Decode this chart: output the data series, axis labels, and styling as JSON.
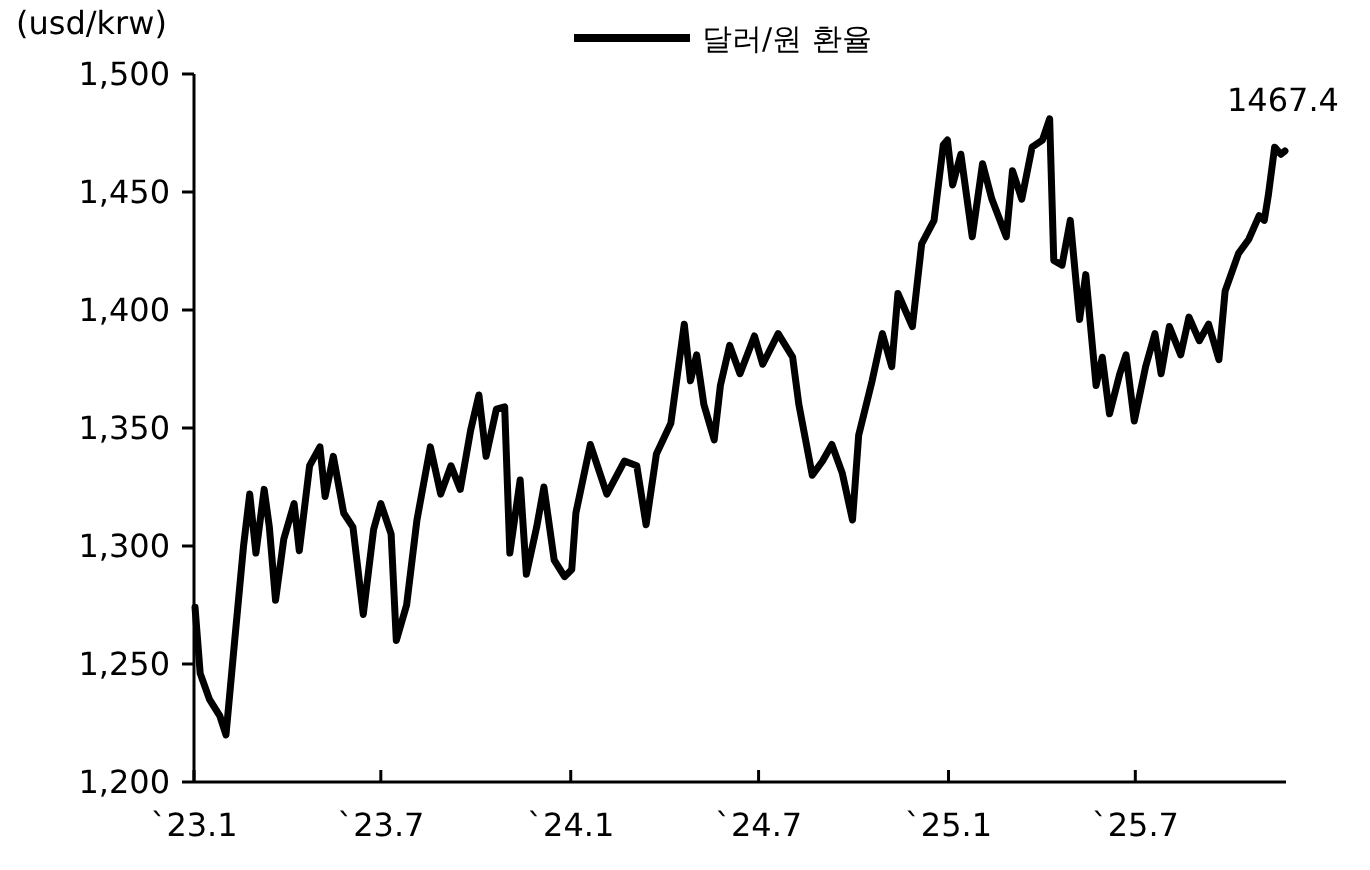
{
  "chart_data": {
    "type": "line",
    "ylabel": "(usd/krw)",
    "legend": "top",
    "grid": false,
    "line_style": "solid",
    "marker": "none",
    "xlim": [
      "2023-01-01",
      "2025-11-24"
    ],
    "ylim": [
      1200,
      1500
    ],
    "xticks": [
      {
        "value": "2023-01-01",
        "label": "`23.1"
      },
      {
        "value": "2023-07-01",
        "label": "`23.7"
      },
      {
        "value": "2024-01-01",
        "label": "`24.1"
      },
      {
        "value": "2024-07-01",
        "label": "`24.7"
      },
      {
        "value": "2025-01-01",
        "label": "`25.1"
      },
      {
        "value": "2025-07-01",
        "label": "`25.7"
      }
    ],
    "yticks": [
      {
        "value": 1200,
        "label": "1,200"
      },
      {
        "value": 1250,
        "label": "1,250"
      },
      {
        "value": 1300,
        "label": "1,300"
      },
      {
        "value": 1350,
        "label": "1,350"
      },
      {
        "value": 1400,
        "label": "1,400"
      },
      {
        "value": 1450,
        "label": "1,450"
      },
      {
        "value": 1500,
        "label": "1,500"
      }
    ],
    "annotations": [
      {
        "text": "1467.4",
        "x": "2025-11-23",
        "y": 1467.4
      }
    ],
    "series": [
      {
        "name": "달러/원 환율",
        "color": "#000000",
        "x": [
          "2023-01-02",
          "2023-01-07",
          "2023-01-16",
          "2023-01-26",
          "2023-02-01",
          "2023-02-09",
          "2023-02-18",
          "2023-02-24",
          "2023-03-02",
          "2023-03-10",
          "2023-03-15",
          "2023-03-21",
          "2023-03-29",
          "2023-04-08",
          "2023-04-13",
          "2023-04-23",
          "2023-05-03",
          "2023-05-08",
          "2023-05-16",
          "2023-05-26",
          "2023-06-04",
          "2023-06-14",
          "2023-06-24",
          "2023-07-01",
          "2023-07-11",
          "2023-07-16",
          "2023-07-26",
          "2023-08-05",
          "2023-08-18",
          "2023-08-28",
          "2023-09-07",
          "2023-09-16",
          "2023-09-26",
          "2023-10-04",
          "2023-10-11",
          "2023-10-21",
          "2023-10-29",
          "2023-11-03",
          "2023-11-13",
          "2023-11-19",
          "2023-11-29",
          "2023-12-06",
          "2023-12-16",
          "2023-12-26",
          "2024-01-02",
          "2024-01-06",
          "2024-01-20",
          "2024-02-05",
          "2024-02-22",
          "2024-03-05",
          "2024-03-14",
          "2024-03-24",
          "2024-04-07",
          "2024-04-20",
          "2024-04-26",
          "2024-05-02",
          "2024-05-09",
          "2024-05-19",
          "2024-05-25",
          "2024-06-03",
          "2024-06-13",
          "2024-06-27",
          "2024-07-05",
          "2024-07-20",
          "2024-08-03",
          "2024-08-09",
          "2024-08-22",
          "2024-09-01",
          "2024-09-10",
          "2024-09-20",
          "2024-09-30",
          "2024-10-06",
          "2024-10-19",
          "2024-10-29",
          "2024-11-07",
          "2024-11-13",
          "2024-11-27",
          "2024-12-06",
          "2024-12-18",
          "2024-12-27",
          "2024-12-31",
          "2025-01-05",
          "2025-01-13",
          "2025-01-24",
          "2025-02-03",
          "2025-02-12",
          "2025-02-26",
          "2025-03-04",
          "2025-03-13",
          "2025-03-23",
          "2025-04-02",
          "2025-04-09",
          "2025-04-13",
          "2025-04-21",
          "2025-04-29",
          "2025-05-08",
          "2025-05-14",
          "2025-05-24",
          "2025-05-30",
          "2025-06-06",
          "2025-06-16",
          "2025-06-22",
          "2025-06-30",
          "2025-07-11",
          "2025-07-20",
          "2025-07-26",
          "2025-08-03",
          "2025-08-14",
          "2025-08-22",
          "2025-09-01",
          "2025-09-10",
          "2025-09-20",
          "2025-09-26",
          "2025-10-09",
          "2025-10-19",
          "2025-10-29",
          "2025-11-03",
          "2025-11-07",
          "2025-11-13",
          "2025-11-19",
          "2025-11-23"
        ],
        "values": [
          1274,
          1246,
          1235,
          1228,
          1220,
          1258,
          1300,
          1322,
          1297,
          1324,
          1308,
          1277,
          1303,
          1318,
          1298,
          1334,
          1342,
          1321,
          1338,
          1314,
          1308,
          1271,
          1307,
          1318,
          1305,
          1260,
          1275,
          1311,
          1342,
          1322,
          1334,
          1324,
          1349,
          1364,
          1338,
          1358,
          1359,
          1297,
          1328,
          1288,
          1308,
          1325,
          1294,
          1287,
          1290,
          1314,
          1343,
          1322,
          1336,
          1334,
          1309,
          1339,
          1352,
          1394,
          1370,
          1381,
          1360,
          1345,
          1368,
          1385,
          1373,
          1389,
          1377,
          1390,
          1380,
          1360,
          1330,
          1336,
          1343,
          1331,
          1311,
          1347,
          1370,
          1390,
          1376,
          1407,
          1393,
          1428,
          1438,
          1470,
          1472,
          1453,
          1466,
          1431,
          1462,
          1447,
          1431,
          1459,
          1447,
          1469,
          1472,
          1481,
          1421,
          1419,
          1438,
          1396,
          1415,
          1368,
          1380,
          1356,
          1373,
          1381,
          1353,
          1376,
          1390,
          1373,
          1393,
          1381,
          1397,
          1387,
          1394,
          1379,
          1408,
          1424,
          1430,
          1440,
          1438,
          1449,
          1469,
          1466,
          1467.4
        ]
      }
    ]
  }
}
